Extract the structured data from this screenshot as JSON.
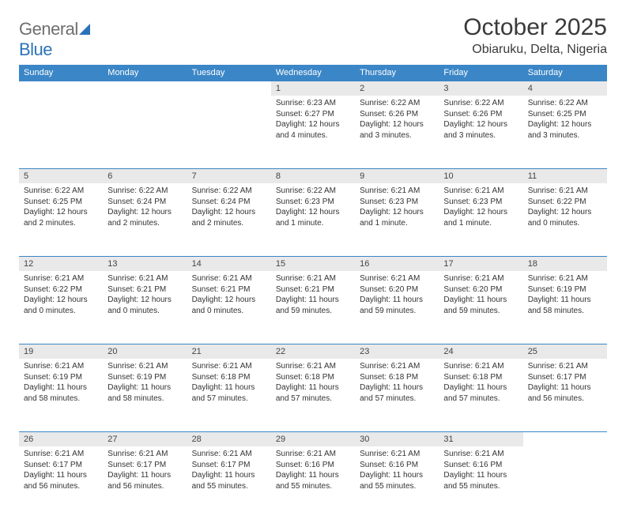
{
  "brand": {
    "part1": "General",
    "part2": "Blue"
  },
  "title": "October 2025",
  "location": "Obiaruku, Delta, Nigeria",
  "weekdays": [
    "Sunday",
    "Monday",
    "Tuesday",
    "Wednesday",
    "Thursday",
    "Friday",
    "Saturday"
  ],
  "colors": {
    "header_bg": "#3b86c6",
    "header_text": "#ffffff",
    "daynum_bg": "#e9e9e9",
    "border": "#3b86c6",
    "text": "#333333",
    "logo_gray": "#6f6f6f",
    "logo_blue": "#2b73b8"
  },
  "first_weekday_index": 3,
  "days": [
    {
      "n": "1",
      "sunrise": "6:23 AM",
      "sunset": "6:27 PM",
      "daylight": "12 hours and 4 minutes."
    },
    {
      "n": "2",
      "sunrise": "6:22 AM",
      "sunset": "6:26 PM",
      "daylight": "12 hours and 3 minutes."
    },
    {
      "n": "3",
      "sunrise": "6:22 AM",
      "sunset": "6:26 PM",
      "daylight": "12 hours and 3 minutes."
    },
    {
      "n": "4",
      "sunrise": "6:22 AM",
      "sunset": "6:25 PM",
      "daylight": "12 hours and 3 minutes."
    },
    {
      "n": "5",
      "sunrise": "6:22 AM",
      "sunset": "6:25 PM",
      "daylight": "12 hours and 2 minutes."
    },
    {
      "n": "6",
      "sunrise": "6:22 AM",
      "sunset": "6:24 PM",
      "daylight": "12 hours and 2 minutes."
    },
    {
      "n": "7",
      "sunrise": "6:22 AM",
      "sunset": "6:24 PM",
      "daylight": "12 hours and 2 minutes."
    },
    {
      "n": "8",
      "sunrise": "6:22 AM",
      "sunset": "6:23 PM",
      "daylight": "12 hours and 1 minute."
    },
    {
      "n": "9",
      "sunrise": "6:21 AM",
      "sunset": "6:23 PM",
      "daylight": "12 hours and 1 minute."
    },
    {
      "n": "10",
      "sunrise": "6:21 AM",
      "sunset": "6:23 PM",
      "daylight": "12 hours and 1 minute."
    },
    {
      "n": "11",
      "sunrise": "6:21 AM",
      "sunset": "6:22 PM",
      "daylight": "12 hours and 0 minutes."
    },
    {
      "n": "12",
      "sunrise": "6:21 AM",
      "sunset": "6:22 PM",
      "daylight": "12 hours and 0 minutes."
    },
    {
      "n": "13",
      "sunrise": "6:21 AM",
      "sunset": "6:21 PM",
      "daylight": "12 hours and 0 minutes."
    },
    {
      "n": "14",
      "sunrise": "6:21 AM",
      "sunset": "6:21 PM",
      "daylight": "12 hours and 0 minutes."
    },
    {
      "n": "15",
      "sunrise": "6:21 AM",
      "sunset": "6:21 PM",
      "daylight": "11 hours and 59 minutes."
    },
    {
      "n": "16",
      "sunrise": "6:21 AM",
      "sunset": "6:20 PM",
      "daylight": "11 hours and 59 minutes."
    },
    {
      "n": "17",
      "sunrise": "6:21 AM",
      "sunset": "6:20 PM",
      "daylight": "11 hours and 59 minutes."
    },
    {
      "n": "18",
      "sunrise": "6:21 AM",
      "sunset": "6:19 PM",
      "daylight": "11 hours and 58 minutes."
    },
    {
      "n": "19",
      "sunrise": "6:21 AM",
      "sunset": "6:19 PM",
      "daylight": "11 hours and 58 minutes."
    },
    {
      "n": "20",
      "sunrise": "6:21 AM",
      "sunset": "6:19 PM",
      "daylight": "11 hours and 58 minutes."
    },
    {
      "n": "21",
      "sunrise": "6:21 AM",
      "sunset": "6:18 PM",
      "daylight": "11 hours and 57 minutes."
    },
    {
      "n": "22",
      "sunrise": "6:21 AM",
      "sunset": "6:18 PM",
      "daylight": "11 hours and 57 minutes."
    },
    {
      "n": "23",
      "sunrise": "6:21 AM",
      "sunset": "6:18 PM",
      "daylight": "11 hours and 57 minutes."
    },
    {
      "n": "24",
      "sunrise": "6:21 AM",
      "sunset": "6:18 PM",
      "daylight": "11 hours and 57 minutes."
    },
    {
      "n": "25",
      "sunrise": "6:21 AM",
      "sunset": "6:17 PM",
      "daylight": "11 hours and 56 minutes."
    },
    {
      "n": "26",
      "sunrise": "6:21 AM",
      "sunset": "6:17 PM",
      "daylight": "11 hours and 56 minutes."
    },
    {
      "n": "27",
      "sunrise": "6:21 AM",
      "sunset": "6:17 PM",
      "daylight": "11 hours and 56 minutes."
    },
    {
      "n": "28",
      "sunrise": "6:21 AM",
      "sunset": "6:17 PM",
      "daylight": "11 hours and 55 minutes."
    },
    {
      "n": "29",
      "sunrise": "6:21 AM",
      "sunset": "6:16 PM",
      "daylight": "11 hours and 55 minutes."
    },
    {
      "n": "30",
      "sunrise": "6:21 AM",
      "sunset": "6:16 PM",
      "daylight": "11 hours and 55 minutes."
    },
    {
      "n": "31",
      "sunrise": "6:21 AM",
      "sunset": "6:16 PM",
      "daylight": "11 hours and 55 minutes."
    }
  ],
  "labels": {
    "sunrise": "Sunrise:",
    "sunset": "Sunset:",
    "daylight": "Daylight:"
  }
}
